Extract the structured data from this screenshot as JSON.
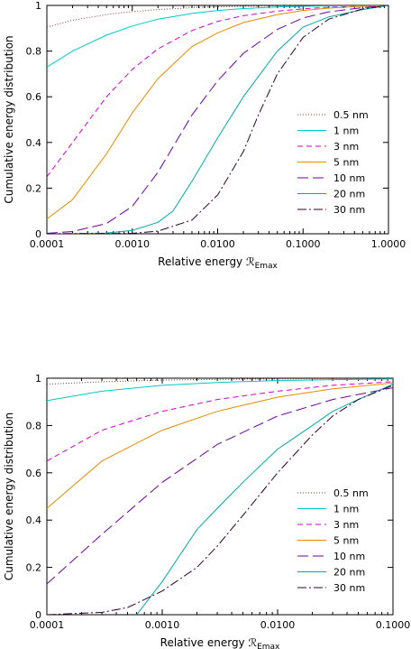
{
  "chart_data": [
    {
      "type": "line",
      "xlabel": "Relative energy ℛ",
      "xlabel_sub": "Emax",
      "ylabel": "Cumulative energy distribution",
      "xscale": "log",
      "xlim": [
        0.0001,
        1.0
      ],
      "ylim": [
        0,
        1
      ],
      "xticks": [
        0.0001,
        0.001,
        0.01,
        0.1,
        1.0
      ],
      "xtick_labels": [
        "0.0001",
        "0.0010",
        "0.0100",
        "0.1000",
        "1.0000"
      ],
      "yticks": [
        0,
        0.2,
        0.4,
        0.6,
        0.8,
        1
      ],
      "ytick_labels": [
        "0",
        "0.2",
        "0.4",
        "0.6",
        "0.8",
        "1"
      ],
      "grid": false,
      "legend_position": "bottom-right",
      "series": [
        {
          "name": "0.5 nm",
          "color": "#8b3a3a",
          "dash": "1,2",
          "x": [
            0.0001,
            0.0002,
            0.0005,
            0.001,
            0.002,
            0.005,
            0.01,
            0.02,
            0.05,
            0.1,
            0.2,
            0.5,
            1.0
          ],
          "y": [
            0.905,
            0.935,
            0.96,
            0.973,
            0.982,
            0.99,
            0.994,
            0.996,
            0.998,
            0.999,
            0.999,
            1.0,
            1.0
          ]
        },
        {
          "name": "1 nm",
          "color": "#00c8c8",
          "dash": "",
          "x": [
            0.0001,
            0.0002,
            0.0005,
            0.001,
            0.002,
            0.005,
            0.01,
            0.02,
            0.05,
            0.1,
            0.2,
            0.5,
            1.0
          ],
          "y": [
            0.73,
            0.8,
            0.87,
            0.91,
            0.94,
            0.965,
            0.978,
            0.986,
            0.993,
            0.996,
            0.998,
            0.999,
            1.0
          ]
        },
        {
          "name": "3 nm",
          "color": "#d000d0",
          "dash": "6,4",
          "x": [
            0.0001,
            0.0002,
            0.0005,
            0.001,
            0.002,
            0.005,
            0.01,
            0.02,
            0.05,
            0.1,
            0.2,
            0.5,
            1.0
          ],
          "y": [
            0.25,
            0.4,
            0.6,
            0.72,
            0.81,
            0.89,
            0.93,
            0.955,
            0.975,
            0.985,
            0.992,
            0.997,
            1.0
          ]
        },
        {
          "name": "5 nm",
          "color": "#e88a00",
          "dash": "",
          "x": [
            0.0001,
            0.0002,
            0.0005,
            0.001,
            0.002,
            0.005,
            0.01,
            0.02,
            0.05,
            0.1,
            0.2,
            0.5,
            1.0
          ],
          "y": [
            0.065,
            0.15,
            0.35,
            0.53,
            0.68,
            0.82,
            0.88,
            0.925,
            0.96,
            0.978,
            0.988,
            0.996,
            1.0
          ]
        },
        {
          "name": "10 nm",
          "color": "#7000a0",
          "dash": "12,5",
          "x": [
            0.0001,
            0.0002,
            0.0005,
            0.001,
            0.002,
            0.005,
            0.01,
            0.02,
            0.05,
            0.1,
            0.2,
            0.5,
            1.0
          ],
          "y": [
            0.002,
            0.01,
            0.045,
            0.12,
            0.27,
            0.52,
            0.67,
            0.79,
            0.895,
            0.945,
            0.972,
            0.99,
            1.0
          ]
        },
        {
          "name": "20 nm",
          "color": "#00a8a8",
          "dash": "",
          "x": [
            0.0001,
            0.0005,
            0.001,
            0.002,
            0.003,
            0.005,
            0.01,
            0.02,
            0.05,
            0.1,
            0.2,
            0.5,
            1.0
          ],
          "y": [
            0.0,
            0.003,
            0.015,
            0.05,
            0.1,
            0.23,
            0.42,
            0.6,
            0.8,
            0.905,
            0.95,
            0.982,
            1.0
          ]
        },
        {
          "name": "30 nm",
          "color": "#300030",
          "dash": "10,3,2,3",
          "x": [
            0.0001,
            0.001,
            0.002,
            0.005,
            0.01,
            0.02,
            0.03,
            0.05,
            0.1,
            0.2,
            0.5,
            1.0
          ],
          "y": [
            0.0,
            0.002,
            0.012,
            0.06,
            0.17,
            0.36,
            0.52,
            0.7,
            0.86,
            0.94,
            0.985,
            1.0
          ]
        }
      ]
    },
    {
      "type": "line",
      "xlabel": "Relative energy ℛ",
      "xlabel_sub": "Emax",
      "ylabel": "Cumulative energy distribution",
      "xscale": "log",
      "xlim": [
        0.0001,
        0.1
      ],
      "ylim": [
        0,
        1
      ],
      "xticks": [
        0.0001,
        0.001,
        0.01,
        0.1
      ],
      "xtick_labels": [
        "0.0001",
        "0.0010",
        "0.0100",
        "0.1000"
      ],
      "yticks": [
        0,
        0.2,
        0.4,
        0.6,
        0.8,
        1
      ],
      "ytick_labels": [
        "0",
        "0.2",
        "0.4",
        "0.6",
        "0.8",
        "1"
      ],
      "grid": false,
      "legend_position": "bottom-right",
      "series": [
        {
          "name": "0.5 nm",
          "color": "#8b3a3a",
          "dash": "1,2",
          "x": [
            0.0001,
            0.0003,
            0.001,
            0.003,
            0.01,
            0.03,
            0.1
          ],
          "y": [
            0.975,
            0.985,
            0.992,
            0.995,
            0.997,
            0.998,
            0.999
          ]
        },
        {
          "name": "1 nm",
          "color": "#00c8c8",
          "dash": "",
          "x": [
            0.0001,
            0.0003,
            0.001,
            0.003,
            0.01,
            0.03,
            0.1
          ],
          "y": [
            0.905,
            0.945,
            0.97,
            0.982,
            0.99,
            0.994,
            0.997
          ]
        },
        {
          "name": "3 nm",
          "color": "#d000d0",
          "dash": "6,4",
          "x": [
            0.0001,
            0.0003,
            0.001,
            0.003,
            0.01,
            0.03,
            0.1
          ],
          "y": [
            0.65,
            0.78,
            0.86,
            0.91,
            0.945,
            0.97,
            0.985
          ]
        },
        {
          "name": "5 nm",
          "color": "#e88a00",
          "dash": "",
          "x": [
            0.0001,
            0.0003,
            0.001,
            0.003,
            0.01,
            0.03,
            0.1
          ],
          "y": [
            0.45,
            0.65,
            0.78,
            0.86,
            0.92,
            0.955,
            0.98
          ]
        },
        {
          "name": "10 nm",
          "color": "#7000a0",
          "dash": "12,5",
          "x": [
            0.0001,
            0.0003,
            0.001,
            0.003,
            0.01,
            0.03,
            0.1
          ],
          "y": [
            0.13,
            0.34,
            0.56,
            0.72,
            0.84,
            0.91,
            0.96
          ]
        },
        {
          "name": "20 nm",
          "color": "#00a8a8",
          "dash": "",
          "x": [
            0.0006,
            0.001,
            0.002,
            0.003,
            0.005,
            0.01,
            0.02,
            0.03,
            0.05,
            0.1
          ],
          "y": [
            0.0,
            0.14,
            0.36,
            0.45,
            0.56,
            0.7,
            0.8,
            0.86,
            0.91,
            0.975
          ]
        },
        {
          "name": "30 nm",
          "color": "#300030",
          "dash": "10,3,2,3",
          "x": [
            0.0001,
            0.0003,
            0.0005,
            0.001,
            0.002,
            0.003,
            0.005,
            0.01,
            0.02,
            0.03,
            0.05,
            0.1
          ],
          "y": [
            0.0,
            0.01,
            0.03,
            0.1,
            0.2,
            0.29,
            0.42,
            0.6,
            0.76,
            0.84,
            0.91,
            0.97
          ]
        }
      ]
    }
  ]
}
